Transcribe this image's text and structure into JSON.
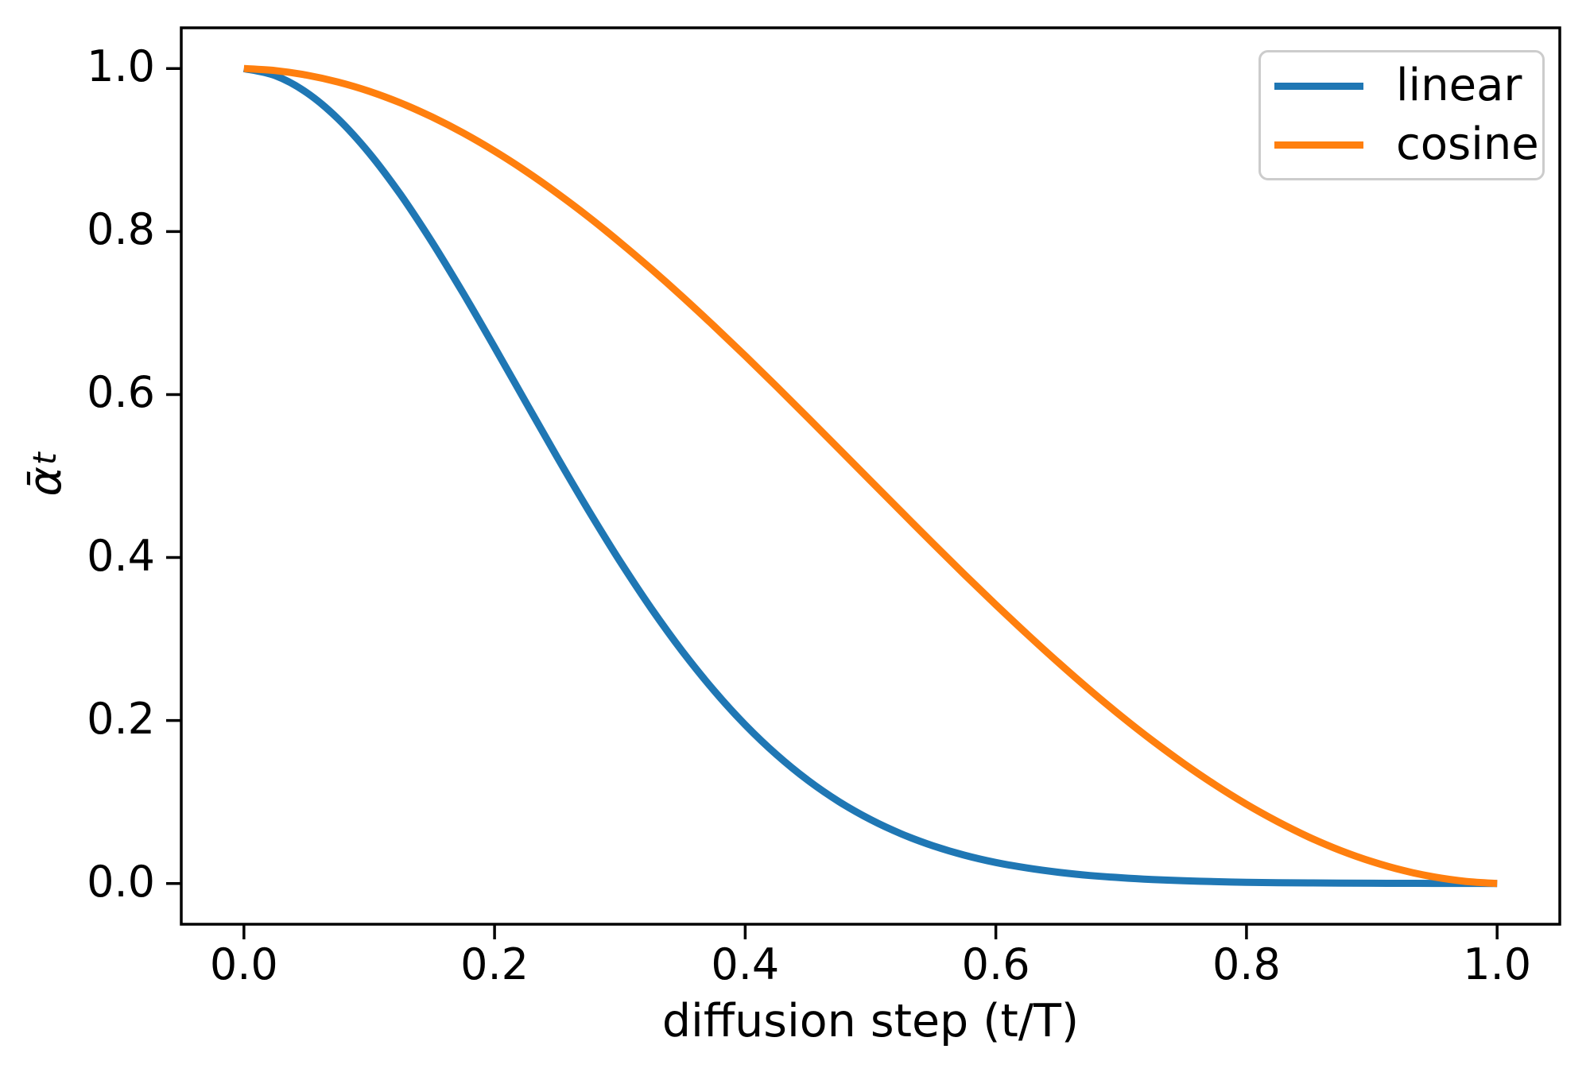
{
  "figure": {
    "background": "#ffffff",
    "text_color": "#000000",
    "frame_color": "#000000",
    "legend_border_color": "#cccccc"
  },
  "chart_data": {
    "type": "line",
    "title": "",
    "xlabel": "diffusion step (t/T)",
    "ylabel_base": "ᾱ",
    "ylabel_sub": "t",
    "grid": false,
    "legend_position": "upper right",
    "xlim": [
      -0.05,
      1.05
    ],
    "ylim": [
      -0.05,
      1.05
    ],
    "xtick_values": [
      0.0,
      0.2,
      0.4,
      0.6,
      0.8,
      1.0
    ],
    "xtick_labels": [
      "0.0",
      "0.2",
      "0.4",
      "0.6",
      "0.8",
      "1.0"
    ],
    "ytick_values": [
      0.0,
      0.2,
      0.4,
      0.6,
      0.8,
      1.0
    ],
    "ytick_labels": [
      "0.0",
      "0.2",
      "0.4",
      "0.6",
      "0.8",
      "1.0"
    ],
    "x": [
      0,
      0.025,
      0.05,
      0.075,
      0.1,
      0.125,
      0.15,
      0.175,
      0.2,
      0.225,
      0.25,
      0.275,
      0.3,
      0.325,
      0.35,
      0.375,
      0.4,
      0.425,
      0.45,
      0.475,
      0.5,
      0.525,
      0.55,
      0.575,
      0.6,
      0.625,
      0.65,
      0.675,
      0.7,
      0.725,
      0.75,
      0.775,
      0.8,
      0.825,
      0.85,
      0.875,
      0.9,
      0.925,
      0.95,
      0.975,
      1.0
    ],
    "series": [
      {
        "name": "linear",
        "color": "#1f77b4",
        "values": [
          1.0,
          0.9913,
          0.9706,
          0.9385,
          0.8962,
          0.8453,
          0.7873,
          0.7243,
          0.658,
          0.5904,
          0.5231,
          0.4578,
          0.3956,
          0.3376,
          0.2846,
          0.2369,
          0.1947,
          0.1581,
          0.1267,
          0.1003,
          0.0784,
          0.0606,
          0.0462,
          0.0347,
          0.0258,
          0.019,
          0.0138,
          0.0098,
          0.007,
          0.0049,
          0.0034,
          0.0023,
          0.0015,
          0.001,
          0.0007,
          0.0004,
          0.0003,
          0.0002,
          0.0001,
          0.0001,
          0.0
        ]
      },
      {
        "name": "cosine",
        "color": "#ff7f0e",
        "values": [
          1.0,
          0.9975,
          0.992,
          0.9835,
          0.9721,
          0.9578,
          0.9407,
          0.921,
          0.8987,
          0.874,
          0.847,
          0.8179,
          0.7868,
          0.7541,
          0.7198,
          0.6841,
          0.6474,
          0.6099,
          0.5716,
          0.533,
          0.4942,
          0.4555,
          0.417,
          0.3791,
          0.342,
          0.3059,
          0.2709,
          0.2374,
          0.2054,
          0.1753,
          0.1471,
          0.121,
          0.0972,
          0.0758,
          0.0568,
          0.0405,
          0.0269,
          0.016,
          0.0079,
          0.0026,
          0.0
        ]
      }
    ]
  }
}
